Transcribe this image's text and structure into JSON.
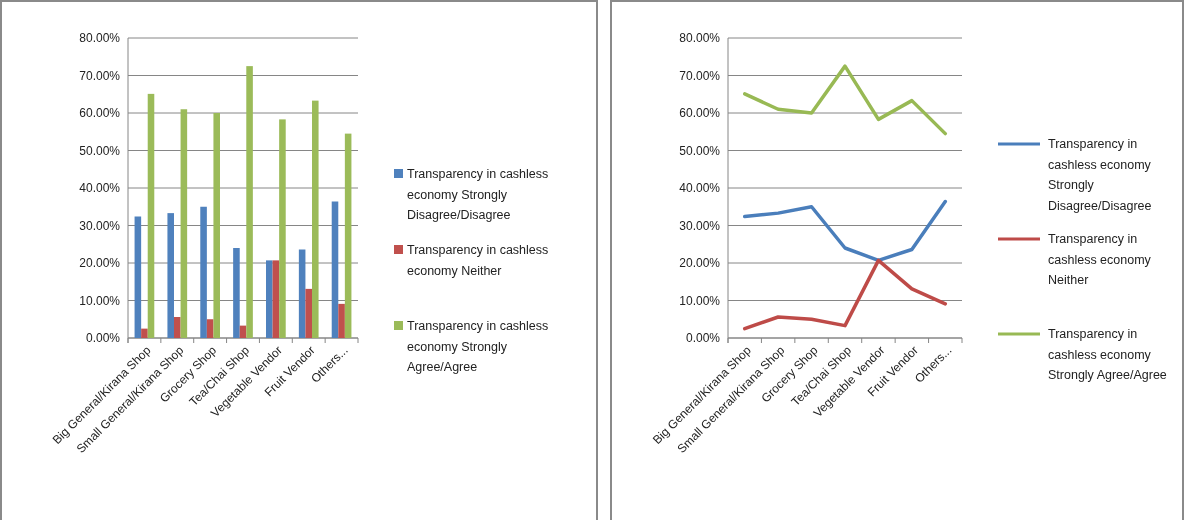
{
  "chart_data": [
    {
      "type": "bar",
      "categories": [
        "Big General/Kirana Shop",
        "Small General/Kirana Shop",
        "Grocery Shop",
        "Tea/Chai Shop",
        "Vegetable Vendor",
        "Fruit Vendor",
        "Others..."
      ],
      "series": [
        {
          "name": "Transparency in cashless economy Strongly Disagree/Disagree",
          "color": "#4f81bd",
          "values": [
            32.4,
            33.3,
            35.0,
            24.0,
            20.7,
            23.6,
            36.4
          ]
        },
        {
          "name": "Transparency in cashless economy Neither",
          "color": "#c0504d",
          "values": [
            2.5,
            5.6,
            5.0,
            3.3,
            20.7,
            13.1,
            9.1
          ]
        },
        {
          "name": "Transparency in cashless economy Strongly Agree/Agree",
          "color": "#9bbb59",
          "values": [
            65.1,
            61.0,
            60.0,
            72.5,
            58.3,
            63.3,
            54.5
          ]
        }
      ],
      "ylim": [
        0,
        80
      ],
      "yticks": [
        {
          "value": 0,
          "label": "0.00%"
        },
        {
          "value": 10,
          "label": "10.00%"
        },
        {
          "value": 20,
          "label": "20.00%"
        },
        {
          "value": 30,
          "label": "30.00%"
        },
        {
          "value": 40,
          "label": "40.00%"
        },
        {
          "value": 50,
          "label": "50.00%"
        },
        {
          "value": 60,
          "label": "60.00%"
        },
        {
          "value": 70,
          "label": "70.00%"
        },
        {
          "value": 80,
          "label": "80.00%"
        }
      ],
      "grid": "y",
      "legend": "right"
    },
    {
      "type": "line",
      "categories": [
        "Big General/Kirana Shop",
        "Small General/Kirana Shop",
        "Grocery Shop",
        "Tea/Chai Shop",
        "Vegetable Vendor",
        "Fruit Vendor",
        "Others..."
      ],
      "series": [
        {
          "name": "Transparency in cashless economy Strongly Disagree/Disagree",
          "color": "#4a7ebb",
          "values": [
            32.4,
            33.3,
            35.0,
            24.0,
            20.7,
            23.6,
            36.4
          ]
        },
        {
          "name": "Transparency in cashless economy Neither",
          "color": "#be4b48",
          "values": [
            2.5,
            5.6,
            5.0,
            3.3,
            20.7,
            13.1,
            9.1
          ]
        },
        {
          "name": "Transparency in cashless economy Strongly Agree/Agree",
          "color": "#98b954",
          "values": [
            65.1,
            61.0,
            60.0,
            72.5,
            58.3,
            63.3,
            54.5
          ]
        }
      ],
      "ylim": [
        0,
        80
      ],
      "yticks": [
        {
          "value": 0,
          "label": "0.00%"
        },
        {
          "value": 10,
          "label": "10.00%"
        },
        {
          "value": 20,
          "label": "20.00%"
        },
        {
          "value": 30,
          "label": "30.00%"
        },
        {
          "value": 40,
          "label": "40.00%"
        },
        {
          "value": 50,
          "label": "50.00%"
        },
        {
          "value": 60,
          "label": "60.00%"
        },
        {
          "value": 70,
          "label": "70.00%"
        },
        {
          "value": 80,
          "label": "80.00%"
        }
      ],
      "grid": "y",
      "legend": "right",
      "marker": "none",
      "line_style": "solid"
    }
  ]
}
